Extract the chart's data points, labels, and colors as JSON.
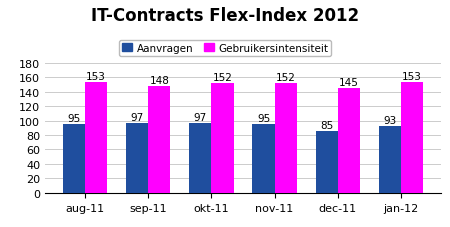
{
  "title": "IT-Contracts Flex-Index 2012",
  "categories": [
    "aug-11",
    "sep-11",
    "okt-11",
    "nov-11",
    "dec-11",
    "jan-12"
  ],
  "aanvragen": [
    95,
    97,
    97,
    95,
    85,
    93
  ],
  "gebruikersintensiteit": [
    153,
    148,
    152,
    152,
    145,
    153
  ],
  "bar_color_aanvragen": "#1f4e9e",
  "bar_color_gebruikers": "#ff00ff",
  "legend_labels": [
    "Aanvragen",
    "Gebruikersintensiteit"
  ],
  "ylim": [
    0,
    180
  ],
  "yticks": [
    0,
    20,
    40,
    60,
    80,
    100,
    120,
    140,
    160,
    180
  ],
  "bar_width": 0.35,
  "title_fontsize": 12,
  "label_fontsize": 7.5,
  "tick_fontsize": 8,
  "background_color": "#ffffff",
  "grid_color": "#cccccc"
}
